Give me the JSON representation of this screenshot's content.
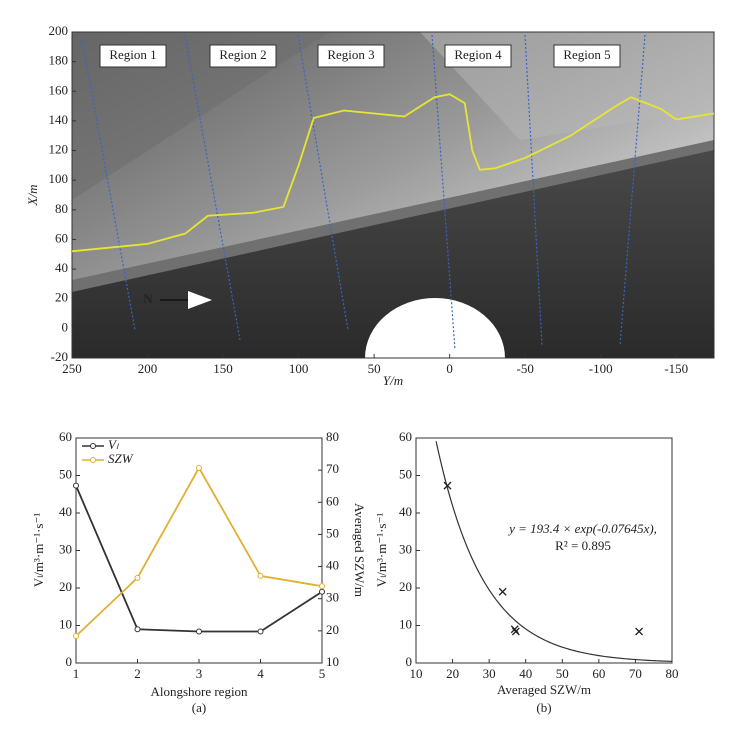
{
  "chart_data": [
    {
      "type": "line",
      "xlabel": "Y/m",
      "ylabel": "X/m",
      "xlim": [
        250,
        -175
      ],
      "xticks": [
        250,
        200,
        150,
        100,
        50,
        0,
        -50,
        -100,
        -150
      ],
      "ylim": [
        -20,
        200
      ],
      "yticks": [
        -20,
        0,
        20,
        40,
        60,
        80,
        100,
        120,
        140,
        160,
        180,
        200
      ],
      "annotations": [
        "Region 1",
        "Region 2",
        "Region 3",
        "Region 4",
        "Region 5",
        "N"
      ],
      "series": [
        {
          "color": "#e6e632",
          "x": [
            250,
            200,
            175,
            160,
            130,
            110,
            100,
            90,
            70,
            50,
            30,
            10,
            0,
            -10,
            -15,
            -20,
            -30,
            -50,
            -80,
            -110,
            -120,
            -140,
            -150,
            -175
          ],
          "values": [
            52,
            57,
            64,
            76,
            78,
            82,
            110,
            142,
            147,
            145,
            143,
            156,
            158,
            152,
            120,
            107,
            108,
            115,
            130,
            150,
            156,
            148,
            141,
            145
          ]
        }
      ]
    },
    {
      "type": "line",
      "xlabel": "Alongshore region",
      "ylabel": "Vₗ/m³·m⁻¹·s⁻¹",
      "y2label": "Averaged SZW/m",
      "caption": "(a)",
      "x": [
        1,
        2,
        3,
        4,
        5
      ],
      "xlim": [
        1,
        5
      ],
      "xticks": [
        1,
        2,
        3,
        4,
        5
      ],
      "ylim": [
        0,
        60
      ],
      "yticks": [
        0,
        10,
        20,
        30,
        40,
        50,
        60
      ],
      "y2lim": [
        10,
        80
      ],
      "y2ticks": [
        10,
        20,
        30,
        40,
        50,
        60,
        70,
        80
      ],
      "series": [
        {
          "name": "Vₗ",
          "color": "#333333",
          "values": [
            47.3,
            9,
            8.4,
            8.4,
            19
          ]
        },
        {
          "name": "SZW",
          "color": "#e0b030",
          "axis": "y2",
          "values": [
            18.4,
            36.5,
            70.7,
            37.1,
            33.9
          ]
        }
      ]
    },
    {
      "type": "scatter",
      "xlabel": "Averaged SZW/m",
      "ylabel": "Vₗ/m³·m⁻¹·s⁻¹",
      "caption": "(b)",
      "xlim": [
        10,
        80
      ],
      "xticks": [
        10,
        20,
        30,
        40,
        50,
        60,
        70,
        80
      ],
      "ylim": [
        0,
        60
      ],
      "yticks": [
        0,
        10,
        20,
        30,
        40,
        50,
        60
      ],
      "x": [
        18.6,
        33.7,
        37,
        37.3,
        71
      ],
      "values": [
        47.3,
        19,
        9,
        8.4,
        8.4
      ],
      "fit": {
        "a": 193.4,
        "b": -0.07645,
        "equation": "y = 193.4 × exp(-0.07645x),",
        "r2": "R² = 0.895"
      }
    }
  ]
}
